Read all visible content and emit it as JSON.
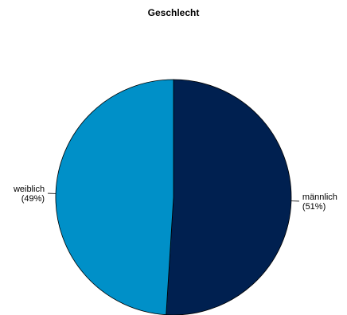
{
  "chart_data": {
    "type": "pie",
    "title": "Geschlecht",
    "slices": [
      {
        "label": "männlich",
        "percent_label": "(51%)",
        "value": 51,
        "color": "#002050"
      },
      {
        "label": "weiblich",
        "percent_label": "(49%)",
        "value": 49,
        "color": "#0090C8"
      }
    ],
    "start": "top",
    "direction": "clockwise",
    "legend": "none"
  }
}
